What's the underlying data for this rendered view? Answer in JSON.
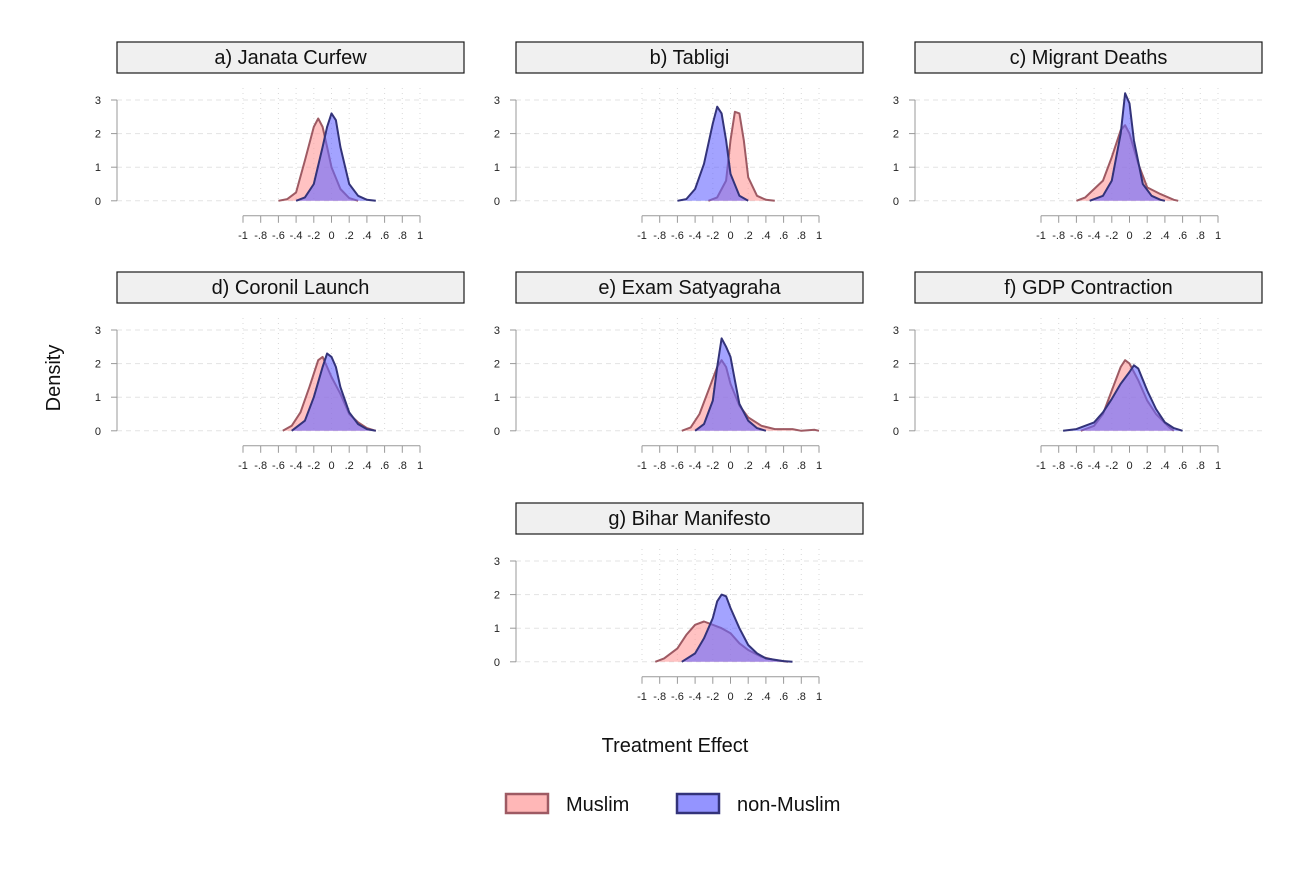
{
  "chart_data": {
    "type": "area",
    "subtype": "density-small-multiples",
    "xlabel": "Treatment Effect",
    "ylabel": "Density",
    "xlim": [
      -1,
      1
    ],
    "ylim": [
      0,
      3
    ],
    "x_ticks": [
      -1,
      -0.8,
      -0.6,
      -0.4,
      -0.2,
      0,
      0.2,
      0.4,
      0.6,
      0.8,
      1
    ],
    "x_tick_labels": [
      "-1",
      "-.8",
      "-.6",
      "-.4",
      "-.2",
      "0",
      ".2",
      ".4",
      ".6",
      ".8",
      "1"
    ],
    "y_ticks": [
      0,
      1,
      2,
      3
    ],
    "y_tick_labels": [
      "0",
      "1",
      "2",
      "3"
    ],
    "grid": true,
    "legend": {
      "position": "bottom",
      "entries": [
        {
          "name": "Muslim",
          "color": "#ff9999",
          "border": "#9e5a63"
        },
        {
          "name": "non-Muslim",
          "color": "#6666ff",
          "border": "#33337a"
        }
      ]
    },
    "panels": [
      {
        "title": "a) Janata Curfew",
        "series": [
          {
            "name": "Muslim",
            "points": [
              [
                -0.6,
                0
              ],
              [
                -0.5,
                0.05
              ],
              [
                -0.4,
                0.25
              ],
              [
                -0.3,
                1.2
              ],
              [
                -0.2,
                2.2
              ],
              [
                -0.15,
                2.45
              ],
              [
                -0.1,
                2.2
              ],
              [
                -0.05,
                1.6
              ],
              [
                0,
                1.0
              ],
              [
                0.1,
                0.35
              ],
              [
                0.2,
                0.08
              ],
              [
                0.3,
                0
              ]
            ]
          },
          {
            "name": "non-Muslim",
            "points": [
              [
                -0.4,
                0
              ],
              [
                -0.3,
                0.1
              ],
              [
                -0.2,
                0.5
              ],
              [
                -0.1,
                1.6
              ],
              [
                -0.05,
                2.2
              ],
              [
                0,
                2.6
              ],
              [
                0.05,
                2.4
              ],
              [
                0.1,
                1.6
              ],
              [
                0.2,
                0.5
              ],
              [
                0.3,
                0.15
              ],
              [
                0.4,
                0.03
              ],
              [
                0.5,
                0
              ]
            ]
          }
        ]
      },
      {
        "title": "b) Tabligi",
        "series": [
          {
            "name": "Muslim",
            "points": [
              [
                -0.25,
                0
              ],
              [
                -0.15,
                0.1
              ],
              [
                -0.05,
                0.6
              ],
              [
                0,
                1.8
              ],
              [
                0.05,
                2.65
              ],
              [
                0.1,
                2.6
              ],
              [
                0.15,
                1.8
              ],
              [
                0.2,
                0.7
              ],
              [
                0.3,
                0.15
              ],
              [
                0.4,
                0.03
              ],
              [
                0.5,
                0
              ]
            ]
          },
          {
            "name": "non-Muslim",
            "points": [
              [
                -0.6,
                0
              ],
              [
                -0.5,
                0.05
              ],
              [
                -0.4,
                0.35
              ],
              [
                -0.3,
                1.1
              ],
              [
                -0.2,
                2.3
              ],
              [
                -0.15,
                2.8
              ],
              [
                -0.1,
                2.6
              ],
              [
                -0.05,
                1.8
              ],
              [
                0,
                0.8
              ],
              [
                0.1,
                0.15
              ],
              [
                0.2,
                0
              ]
            ]
          }
        ]
      },
      {
        "title": "c) Migrant Deaths",
        "series": [
          {
            "name": "Muslim",
            "points": [
              [
                -0.6,
                0
              ],
              [
                -0.5,
                0.1
              ],
              [
                -0.3,
                0.6
              ],
              [
                -0.2,
                1.3
              ],
              [
                -0.1,
                2.1
              ],
              [
                -0.05,
                2.25
              ],
              [
                0,
                2.0
              ],
              [
                0.1,
                1.1
              ],
              [
                0.2,
                0.4
              ],
              [
                0.35,
                0.2
              ],
              [
                0.5,
                0.03
              ],
              [
                0.55,
                0
              ]
            ]
          },
          {
            "name": "non-Muslim",
            "points": [
              [
                -0.45,
                0
              ],
              [
                -0.3,
                0.15
              ],
              [
                -0.2,
                0.6
              ],
              [
                -0.1,
                2.0
              ],
              [
                -0.05,
                3.2
              ],
              [
                0,
                2.9
              ],
              [
                0.05,
                1.8
              ],
              [
                0.15,
                0.5
              ],
              [
                0.25,
                0.15
              ],
              [
                0.35,
                0.03
              ],
              [
                0.4,
                0
              ]
            ]
          }
        ]
      },
      {
        "title": "d) Coronil Launch",
        "series": [
          {
            "name": "Muslim",
            "points": [
              [
                -0.55,
                0
              ],
              [
                -0.45,
                0.15
              ],
              [
                -0.35,
                0.55
              ],
              [
                -0.25,
                1.3
              ],
              [
                -0.15,
                2.1
              ],
              [
                -0.1,
                2.2
              ],
              [
                -0.05,
                1.9
              ],
              [
                0,
                1.6
              ],
              [
                0.1,
                1.1
              ],
              [
                0.2,
                0.5
              ],
              [
                0.3,
                0.25
              ],
              [
                0.4,
                0.08
              ],
              [
                0.5,
                0
              ]
            ]
          },
          {
            "name": "non-Muslim",
            "points": [
              [
                -0.45,
                0
              ],
              [
                -0.3,
                0.3
              ],
              [
                -0.2,
                1.0
              ],
              [
                -0.1,
                1.9
              ],
              [
                -0.05,
                2.3
              ],
              [
                0,
                2.2
              ],
              [
                0.05,
                1.9
              ],
              [
                0.1,
                1.3
              ],
              [
                0.2,
                0.55
              ],
              [
                0.3,
                0.2
              ],
              [
                0.4,
                0.05
              ],
              [
                0.5,
                0
              ]
            ]
          }
        ]
      },
      {
        "title": "e) Exam Satyagraha",
        "series": [
          {
            "name": "Muslim",
            "points": [
              [
                -0.55,
                0
              ],
              [
                -0.45,
                0.1
              ],
              [
                -0.35,
                0.5
              ],
              [
                -0.25,
                1.2
              ],
              [
                -0.15,
                1.9
              ],
              [
                -0.1,
                2.1
              ],
              [
                -0.05,
                1.9
              ],
              [
                0,
                1.4
              ],
              [
                0.1,
                0.75
              ],
              [
                0.2,
                0.4
              ],
              [
                0.35,
                0.15
              ],
              [
                0.5,
                0.05
              ],
              [
                0.7,
                0.05
              ],
              [
                0.8,
                0
              ],
              [
                0.95,
                0.03
              ],
              [
                1,
                0
              ]
            ]
          },
          {
            "name": "non-Muslim",
            "points": [
              [
                -0.4,
                0
              ],
              [
                -0.3,
                0.2
              ],
              [
                -0.2,
                0.9
              ],
              [
                -0.15,
                1.9
              ],
              [
                -0.1,
                2.75
              ],
              [
                -0.05,
                2.5
              ],
              [
                0,
                2.2
              ],
              [
                0.05,
                1.5
              ],
              [
                0.1,
                0.8
              ],
              [
                0.2,
                0.3
              ],
              [
                0.3,
                0.08
              ],
              [
                0.4,
                0
              ]
            ]
          }
        ]
      },
      {
        "title": "f) GDP Contraction",
        "series": [
          {
            "name": "Muslim",
            "points": [
              [
                -0.55,
                0
              ],
              [
                -0.4,
                0.15
              ],
              [
                -0.3,
                0.5
              ],
              [
                -0.2,
                1.2
              ],
              [
                -0.1,
                1.9
              ],
              [
                -0.05,
                2.1
              ],
              [
                0,
                2.0
              ],
              [
                0.1,
                1.5
              ],
              [
                0.2,
                0.9
              ],
              [
                0.3,
                0.5
              ],
              [
                0.45,
                0.1
              ],
              [
                0.5,
                0
              ]
            ]
          },
          {
            "name": "non-Muslim",
            "points": [
              [
                -0.75,
                0
              ],
              [
                -0.6,
                0.05
              ],
              [
                -0.4,
                0.25
              ],
              [
                -0.3,
                0.55
              ],
              [
                -0.2,
                0.95
              ],
              [
                -0.1,
                1.4
              ],
              [
                0,
                1.75
              ],
              [
                0.05,
                1.95
              ],
              [
                0.1,
                1.85
              ],
              [
                0.2,
                1.2
              ],
              [
                0.3,
                0.65
              ],
              [
                0.4,
                0.25
              ],
              [
                0.5,
                0.08
              ],
              [
                0.6,
                0
              ]
            ]
          }
        ]
      },
      {
        "title": "g) Bihar Manifesto",
        "series": [
          {
            "name": "Muslim",
            "points": [
              [
                -0.85,
                0
              ],
              [
                -0.75,
                0.1
              ],
              [
                -0.6,
                0.4
              ],
              [
                -0.5,
                0.8
              ],
              [
                -0.4,
                1.1
              ],
              [
                -0.3,
                1.2
              ],
              [
                -0.2,
                1.1
              ],
              [
                -0.1,
                1.0
              ],
              [
                0,
                0.85
              ],
              [
                0.1,
                0.55
              ],
              [
                0.2,
                0.35
              ],
              [
                0.35,
                0.15
              ],
              [
                0.5,
                0.05
              ],
              [
                0.65,
                0
              ]
            ]
          },
          {
            "name": "non-Muslim",
            "points": [
              [
                -0.55,
                0
              ],
              [
                -0.4,
                0.25
              ],
              [
                -0.3,
                0.7
              ],
              [
                -0.2,
                1.3
              ],
              [
                -0.15,
                1.8
              ],
              [
                -0.1,
                2.0
              ],
              [
                -0.05,
                1.95
              ],
              [
                0,
                1.6
              ],
              [
                0.1,
                1.0
              ],
              [
                0.2,
                0.5
              ],
              [
                0.3,
                0.25
              ],
              [
                0.4,
                0.1
              ],
              [
                0.6,
                0.02
              ],
              [
                0.7,
                0
              ]
            ]
          }
        ]
      }
    ]
  }
}
